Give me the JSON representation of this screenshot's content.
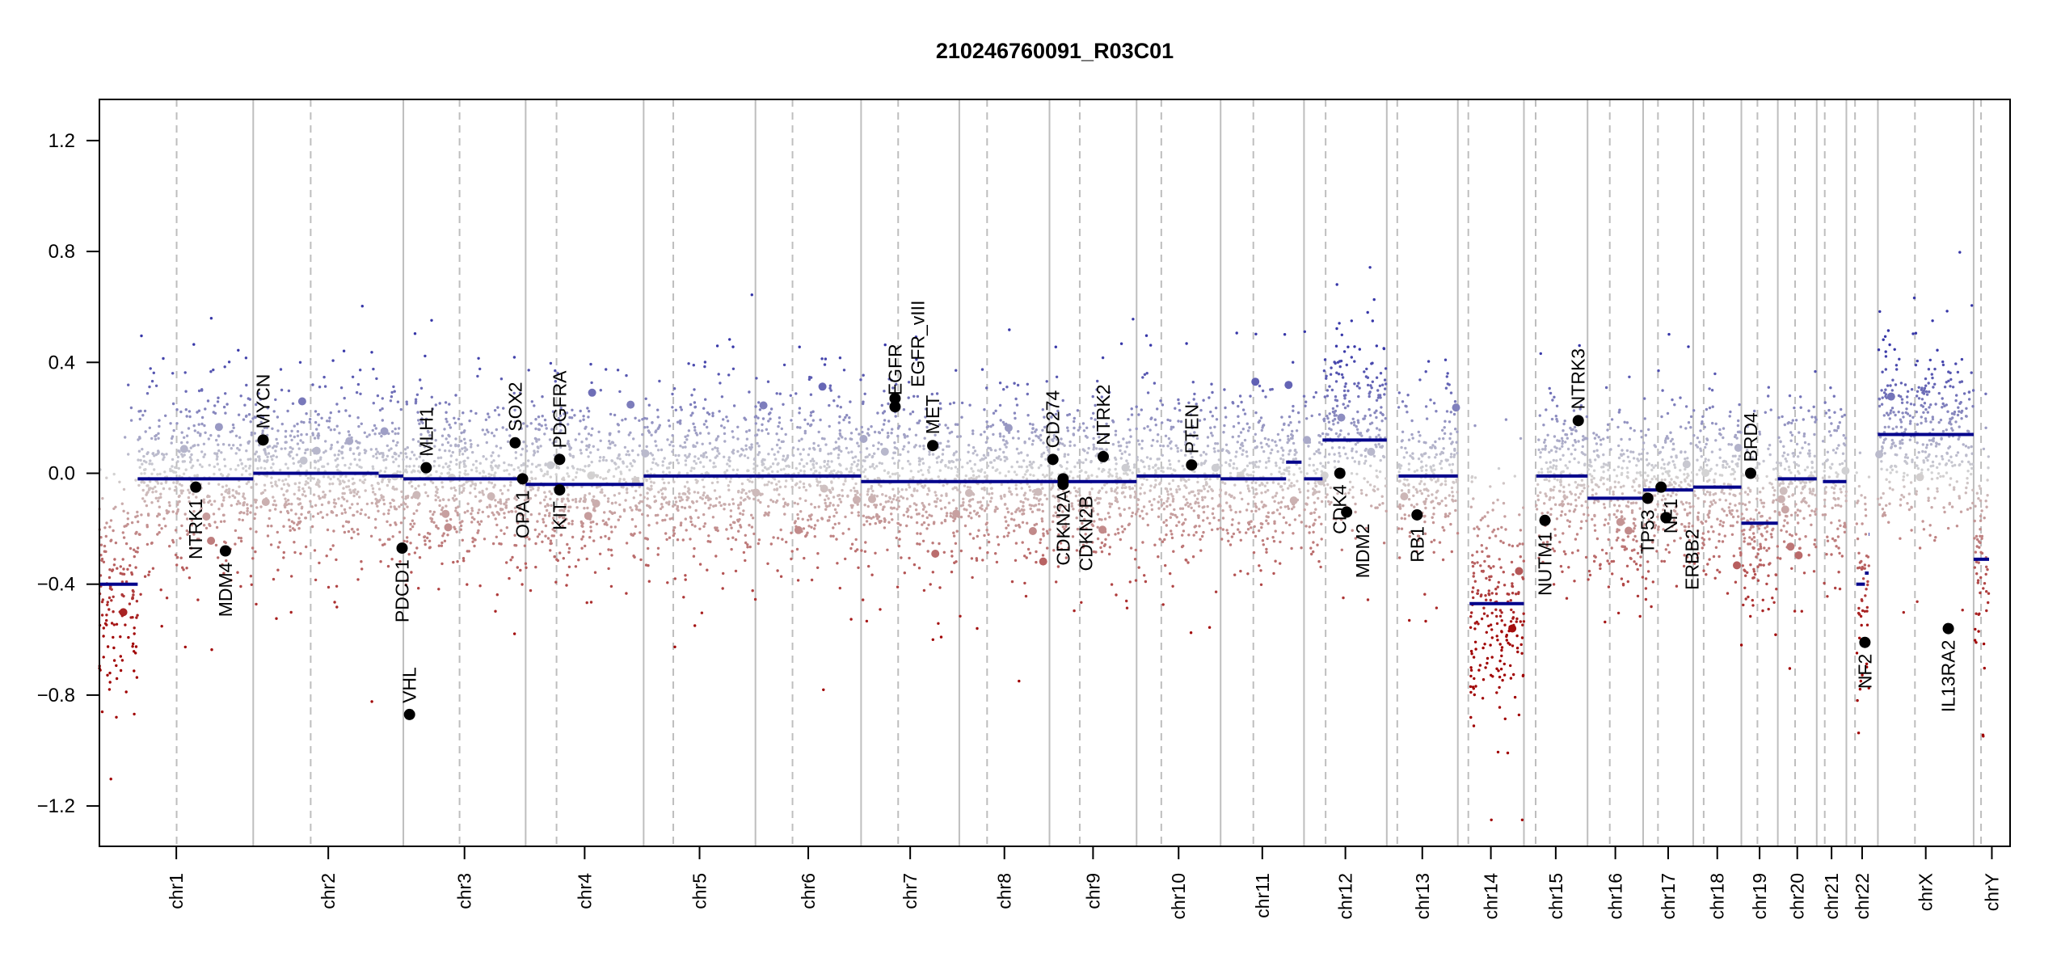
{
  "chart_data": {
    "type": "scatter",
    "title": "210246760091_R03C01",
    "xlabel": "",
    "ylabel": "",
    "ylim": [
      -1.35,
      1.35
    ],
    "yticks": [
      "-1.2",
      "-0.8",
      "-0.4",
      "0.0",
      "0.4",
      "0.8",
      "1.2"
    ],
    "ytick_values": [
      -1.2,
      -0.8,
      -0.4,
      0.0,
      0.4,
      0.8,
      1.2
    ],
    "grid": false,
    "x_units": "Mb (concatenated chromosomes)",
    "chromosomes": [
      {
        "name": "chr1",
        "length": 249,
        "centromere": 125,
        "sd": 0.17
      },
      {
        "name": "chr2",
        "length": 243,
        "centromere": 93,
        "sd": 0.15
      },
      {
        "name": "chr3",
        "length": 198,
        "centromere": 91,
        "sd": 0.15
      },
      {
        "name": "chr4",
        "length": 191,
        "centromere": 50,
        "sd": 0.15
      },
      {
        "name": "chr5",
        "length": 181,
        "centromere": 48,
        "sd": 0.15
      },
      {
        "name": "chr6",
        "length": 171,
        "centromere": 60,
        "sd": 0.15
      },
      {
        "name": "chr7",
        "length": 159,
        "centromere": 60,
        "sd": 0.15
      },
      {
        "name": "chr8",
        "length": 146,
        "centromere": 45,
        "sd": 0.15
      },
      {
        "name": "chr9",
        "length": 141,
        "centromere": 49,
        "sd": 0.15
      },
      {
        "name": "chr10",
        "length": 136,
        "centromere": 40,
        "sd": 0.15
      },
      {
        "name": "chr11",
        "length": 135,
        "centromere": 53,
        "sd": 0.15
      },
      {
        "name": "chr12",
        "length": 134,
        "centromere": 35,
        "sd": 0.16
      },
      {
        "name": "chr13",
        "length": 115,
        "centromere": 17,
        "sd": 0.15
      },
      {
        "name": "chr14",
        "length": 107,
        "centromere": 17,
        "sd": 0.2
      },
      {
        "name": "chr15",
        "length": 103,
        "centromere": 19,
        "sd": 0.15
      },
      {
        "name": "chr16",
        "length": 90,
        "centromere": 36,
        "sd": 0.15
      },
      {
        "name": "chr17",
        "length": 81,
        "centromere": 24,
        "sd": 0.15
      },
      {
        "name": "chr18",
        "length": 78,
        "centromere": 17,
        "sd": 0.15
      },
      {
        "name": "chr19",
        "length": 59,
        "centromere": 26,
        "sd": 0.17
      },
      {
        "name": "chr20",
        "length": 63,
        "centromere": 28,
        "sd": 0.15
      },
      {
        "name": "chr21",
        "length": 48,
        "centromere": 13,
        "sd": 0.15
      },
      {
        "name": "chr22",
        "length": 51,
        "centromere": 14,
        "sd": 0.2
      },
      {
        "name": "chrX",
        "length": 155,
        "centromere": 60,
        "sd": 0.16
      },
      {
        "name": "chrY",
        "length": 59,
        "centromere": 12,
        "sd": 0.15
      }
    ],
    "segments": [
      {
        "chr": "chr1",
        "start": 0,
        "end": 62,
        "mean": -0.4
      },
      {
        "chr": "chr1",
        "start": 62,
        "end": 249,
        "mean": -0.02
      },
      {
        "chr": "chr2",
        "start": 0,
        "end": 203,
        "mean": 0.0
      },
      {
        "chr": "chr2",
        "start": 203,
        "end": 243,
        "mean": -0.01
      },
      {
        "chr": "chr3",
        "start": 0,
        "end": 198,
        "mean": -0.02
      },
      {
        "chr": "chr4",
        "start": 0,
        "end": 191,
        "mean": -0.04
      },
      {
        "chr": "chr5",
        "start": 0,
        "end": 181,
        "mean": -0.01
      },
      {
        "chr": "chr6",
        "start": 0,
        "end": 171,
        "mean": -0.01
      },
      {
        "chr": "chr7",
        "start": 0,
        "end": 159,
        "mean": -0.03
      },
      {
        "chr": "chr8",
        "start": 0,
        "end": 146,
        "mean": -0.03
      },
      {
        "chr": "chr9",
        "start": 0,
        "end": 141,
        "mean": -0.03
      },
      {
        "chr": "chr10",
        "start": 0,
        "end": 136,
        "mean": -0.01
      },
      {
        "chr": "chr11",
        "start": 0,
        "end": 106,
        "mean": -0.02
      },
      {
        "chr": "chr11",
        "start": 106,
        "end": 131,
        "mean": 0.04
      },
      {
        "chr": "chr12",
        "start": 0,
        "end": 30,
        "mean": -0.02
      },
      {
        "chr": "chr12",
        "start": 30,
        "end": 134,
        "mean": 0.12
      },
      {
        "chr": "chr13",
        "start": 19,
        "end": 115,
        "mean": -0.01
      },
      {
        "chr": "chr14",
        "start": 19,
        "end": 107,
        "mean": -0.47
      },
      {
        "chr": "chr15",
        "start": 20,
        "end": 103,
        "mean": -0.01
      },
      {
        "chr": "chr16",
        "start": 0,
        "end": 90,
        "mean": -0.09
      },
      {
        "chr": "chr17",
        "start": 0,
        "end": 81,
        "mean": -0.06
      },
      {
        "chr": "chr18",
        "start": 0,
        "end": 78,
        "mean": -0.05
      },
      {
        "chr": "chr19",
        "start": 0,
        "end": 59,
        "mean": -0.18
      },
      {
        "chr": "chr20",
        "start": 0,
        "end": 63,
        "mean": -0.02
      },
      {
        "chr": "chr21",
        "start": 10,
        "end": 48,
        "mean": -0.03
      },
      {
        "chr": "chr22",
        "start": 16,
        "end": 30,
        "mean": -0.4
      },
      {
        "chr": "chr22",
        "start": 30,
        "end": 36,
        "mean": -0.36
      },
      {
        "chr": "chr22",
        "start": 36,
        "end": 37,
        "mean": -0.22
      },
      {
        "chr": "chrX",
        "start": 0,
        "end": 155,
        "mean": 0.14
      },
      {
        "chr": "chrY",
        "start": 0,
        "end": 25,
        "mean": -0.31
      }
    ],
    "genes": [
      {
        "name": "NTRK1",
        "chr": "chr1",
        "pos": 156,
        "value": -0.05,
        "label": "below"
      },
      {
        "name": "MDM4",
        "chr": "chr1",
        "pos": 204,
        "value": -0.28,
        "label": "below"
      },
      {
        "name": "MYCN",
        "chr": "chr2",
        "pos": 16,
        "value": 0.12,
        "label": "above"
      },
      {
        "name": "PDCD1",
        "chr": "chr2",
        "pos": 241,
        "value": -0.27,
        "label": "below"
      },
      {
        "name": "VHL",
        "chr": "chr3",
        "pos": 10,
        "value": -0.87,
        "label": "above"
      },
      {
        "name": "MLH1",
        "chr": "chr3",
        "pos": 37,
        "value": 0.02,
        "label": "above"
      },
      {
        "name": "SOX2",
        "chr": "chr3",
        "pos": 181,
        "value": 0.11,
        "label": "above"
      },
      {
        "name": "OPA1",
        "chr": "chr3",
        "pos": 193,
        "value": -0.02,
        "label": "below"
      },
      {
        "name": "PDGFRA",
        "chr": "chr4",
        "pos": 55,
        "value": 0.05,
        "label": "above"
      },
      {
        "name": "KIT",
        "chr": "chr4",
        "pos": 55,
        "value": -0.06,
        "label": "below"
      },
      {
        "name": "EGFR",
        "chr": "chr7",
        "pos": 55,
        "value": 0.24,
        "label": "above"
      },
      {
        "name": "EGFR_vIII",
        "chr": "chr7",
        "pos": 55,
        "value": 0.27,
        "label": "above"
      },
      {
        "name": "MET",
        "chr": "chr7",
        "pos": 116,
        "value": 0.1,
        "label": "above"
      },
      {
        "name": "CD274",
        "chr": "chr9",
        "pos": 5.5,
        "value": 0.05,
        "label": "above"
      },
      {
        "name": "CDKN2A",
        "chr": "chr9",
        "pos": 22,
        "value": -0.02,
        "label": "below"
      },
      {
        "name": "CDKN2B",
        "chr": "chr9",
        "pos": 22,
        "value": -0.04,
        "label": "below"
      },
      {
        "name": "NTRK2",
        "chr": "chr9",
        "pos": 87,
        "value": 0.06,
        "label": "above"
      },
      {
        "name": "PTEN",
        "chr": "chr10",
        "pos": 89,
        "value": 0.03,
        "label": "above"
      },
      {
        "name": "CDK4",
        "chr": "chr12",
        "pos": 58,
        "value": 0.0,
        "label": "below"
      },
      {
        "name": "MDM2",
        "chr": "chr12",
        "pos": 69,
        "value": -0.14,
        "label": "below"
      },
      {
        "name": "RB1",
        "chr": "chr13",
        "pos": 49,
        "value": -0.15,
        "label": "below"
      },
      {
        "name": "NUTM1",
        "chr": "chr15",
        "pos": 34,
        "value": -0.17,
        "label": "below"
      },
      {
        "name": "NTRK3",
        "chr": "chr15",
        "pos": 88,
        "value": 0.19,
        "label": "above"
      },
      {
        "name": "TP53",
        "chr": "chr17",
        "pos": 7.5,
        "value": -0.09,
        "label": "below"
      },
      {
        "name": "NF1",
        "chr": "chr17",
        "pos": 29,
        "value": -0.05,
        "label": "below"
      },
      {
        "name": "ERBB2",
        "chr": "chr17",
        "pos": 37,
        "value": -0.16,
        "label": "below"
      },
      {
        "name": "BRD4",
        "chr": "chr19",
        "pos": 15,
        "value": 0.0,
        "label": "above"
      },
      {
        "name": "NF2",
        "chr": "chr22",
        "pos": 30,
        "value": -0.61,
        "label": "below"
      },
      {
        "name": "IL13RA2",
        "chr": "chrX",
        "pos": 114,
        "value": -0.56,
        "label": "below"
      }
    ],
    "colors": {
      "segment": "#00008b",
      "loss": "#a00000",
      "neutral": "#d3d3d3",
      "gain": "#3636a8",
      "gene": "#000000",
      "divider": "#bebebe"
    }
  }
}
